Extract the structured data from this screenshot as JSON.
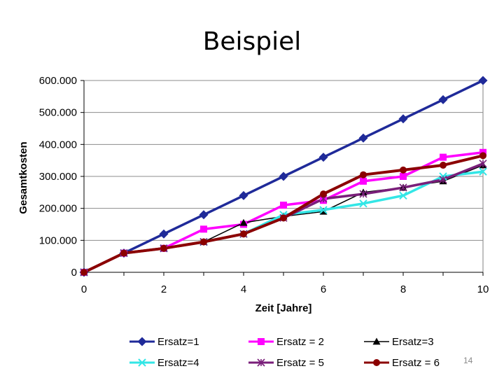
{
  "slide": {
    "title": "Beispiel",
    "page_number": "14"
  },
  "chart_data": {
    "type": "line",
    "title": "",
    "xlabel": "Zeit [Jahre]",
    "ylabel": "Gesamtkosten",
    "xlim": [
      0,
      10
    ],
    "ylim": [
      0,
      600000
    ],
    "x_ticks": [
      "0",
      "2",
      "4",
      "6",
      "8",
      "10"
    ],
    "y_ticks": [
      "0",
      "100.000",
      "200.000",
      "300.000",
      "400.000",
      "500.000",
      "600.000"
    ],
    "grid": "horizontal",
    "legend_position": "bottom",
    "x": [
      0,
      1,
      2,
      3,
      4,
      5,
      6,
      7,
      8,
      9,
      10
    ],
    "series": [
      {
        "name": "Ersatz=1",
        "color": "#1f2a99",
        "marker": "diamond",
        "values": [
          0,
          60000,
          120000,
          180000,
          240000,
          300000,
          360000,
          420000,
          480000,
          540000,
          600000
        ]
      },
      {
        "name": "Ersatz = 2",
        "color": "#ff00ff",
        "marker": "square",
        "values": [
          0,
          60000,
          75000,
          135000,
          150000,
          210000,
          225000,
          285000,
          300000,
          360000,
          375000
        ]
      },
      {
        "name": "Ersatz=3",
        "color": "#000000",
        "marker": "triangle",
        "values": [
          0,
          60000,
          75000,
          95000,
          155000,
          175000,
          190000,
          250000,
          265000,
          285000,
          335000
        ]
      },
      {
        "name": "Ersatz=4",
        "color": "#33e6e6",
        "marker": "x",
        "values": [
          0,
          60000,
          75000,
          95000,
          120000,
          180000,
          195000,
          215000,
          240000,
          300000,
          315000
        ]
      },
      {
        "name": "Ersatz = 5",
        "color": "#7a1f7a",
        "marker": "star",
        "values": [
          0,
          60000,
          75000,
          95000,
          120000,
          170000,
          230000,
          245000,
          265000,
          290000,
          340000
        ]
      },
      {
        "name": "Ersatz = 6",
        "color": "#8b0000",
        "marker": "circle",
        "values": [
          0,
          60000,
          75000,
          95000,
          120000,
          170000,
          245000,
          305000,
          320000,
          335000,
          365000
        ]
      }
    ]
  }
}
